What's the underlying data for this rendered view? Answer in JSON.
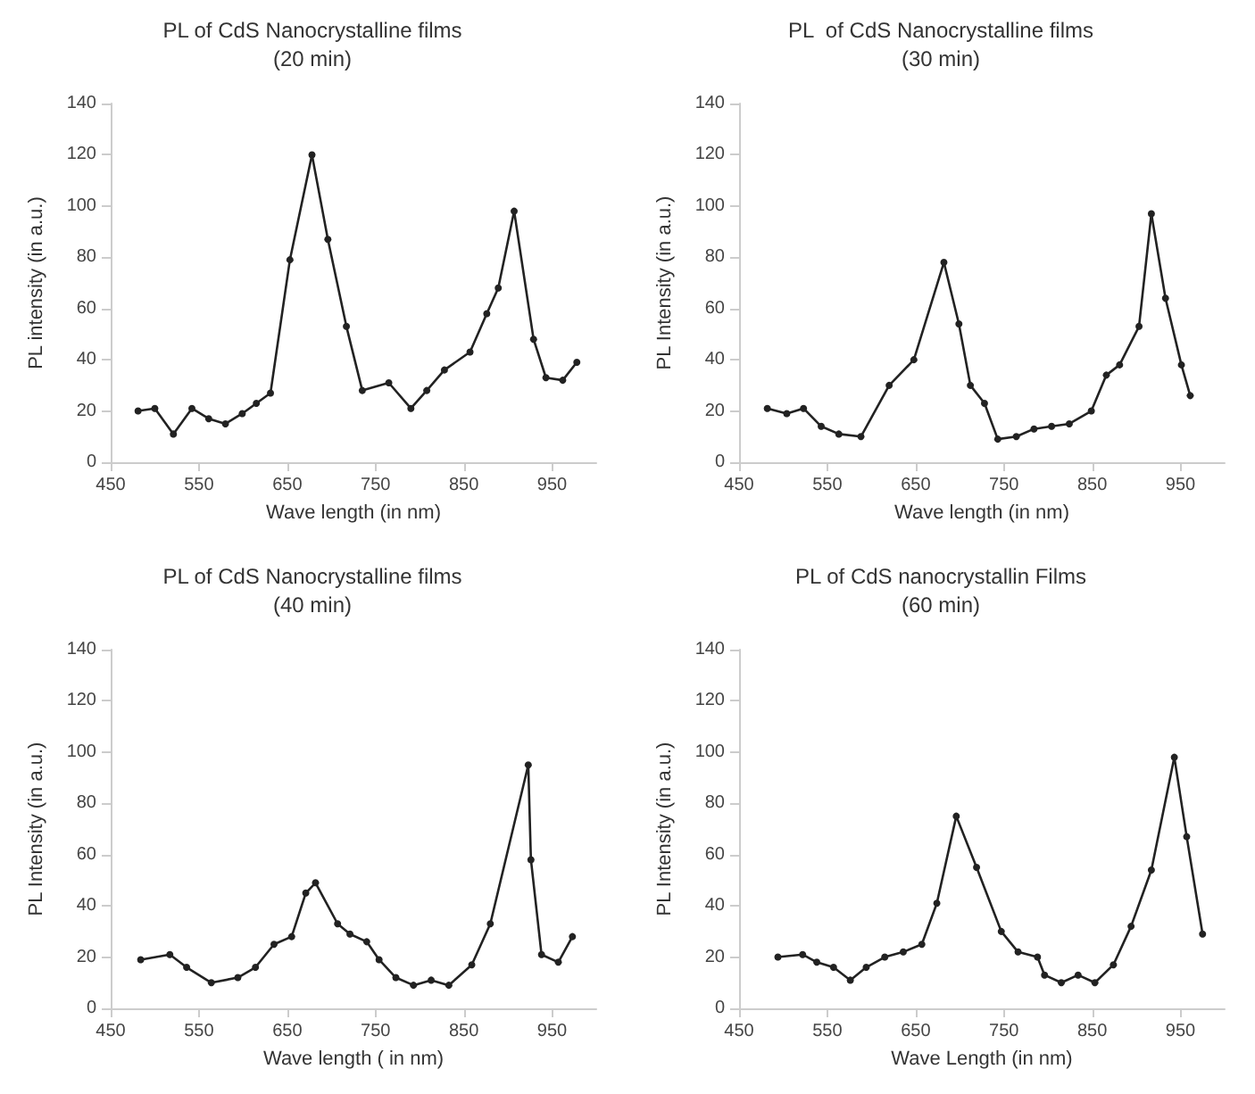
{
  "chart_data": [
    {
      "type": "line",
      "title": "PL of CdS Nanocrystalline films",
      "subtitle": "(20 min)",
      "xlabel": "Wave length (in nm)",
      "ylabel": "PL intensity (in a.u.)",
      "xlim": [
        450,
        1000
      ],
      "xticks": [
        450,
        550,
        650,
        750,
        850,
        950
      ],
      "ylim": [
        0,
        140
      ],
      "yticks": [
        0,
        20,
        40,
        60,
        80,
        100,
        120,
        140
      ],
      "grid": false,
      "marker": "circle",
      "line_style": "solid",
      "series": [
        {
          "color": "#222222",
          "x": [
            481,
            500,
            521,
            542,
            561,
            580,
            599,
            615,
            631,
            653,
            678,
            696,
            717,
            735,
            765,
            790,
            808,
            828,
            857,
            876,
            889,
            907,
            929,
            943,
            962,
            978
          ],
          "values": [
            20,
            21,
            11,
            21,
            17,
            15,
            19,
            23,
            27,
            79,
            120,
            87,
            53,
            28,
            31,
            21,
            28,
            36,
            43,
            58,
            68,
            98,
            48,
            33,
            32,
            39
          ]
        }
      ]
    },
    {
      "type": "line",
      "title": "PL  of CdS Nanocrystalline films",
      "subtitle": "(30 min)",
      "xlabel": "Wave length (in nm)",
      "ylabel": "PL Intensity (in a.u.)",
      "xlim": [
        450,
        1000
      ],
      "xticks": [
        450,
        550,
        650,
        750,
        850,
        950
      ],
      "ylim": [
        0,
        140
      ],
      "yticks": [
        0,
        20,
        40,
        60,
        80,
        100,
        120,
        140
      ],
      "grid": false,
      "marker": "circle",
      "line_style": "solid",
      "series": [
        {
          "color": "#222222",
          "x": [
            482,
            504,
            523,
            543,
            563,
            588,
            620,
            648,
            682,
            699,
            712,
            728,
            743,
            764,
            784,
            804,
            824,
            849,
            866,
            881,
            903,
            917,
            933,
            951,
            961
          ],
          "values": [
            21,
            19,
            21,
            14,
            11,
            10,
            30,
            40,
            78,
            54,
            30,
            23,
            9,
            10,
            13,
            14,
            15,
            20,
            34,
            38,
            53,
            97,
            64,
            38,
            26
          ]
        }
      ]
    },
    {
      "type": "line",
      "title": "PL of CdS Nanocrystalline films",
      "subtitle": "(40 min)",
      "xlabel": "Wave length ( in nm)",
      "ylabel": "PL Intensity (in a.u.)",
      "xlim": [
        450,
        1000
      ],
      "xticks": [
        450,
        550,
        650,
        750,
        850,
        950
      ],
      "ylim": [
        0,
        140
      ],
      "yticks": [
        0,
        20,
        40,
        60,
        80,
        100,
        120,
        140
      ],
      "grid": false,
      "marker": "circle",
      "line_style": "solid",
      "series": [
        {
          "color": "#222222",
          "x": [
            484,
            517,
            536,
            564,
            594,
            614,
            635,
            655,
            671,
            682,
            707,
            721,
            740,
            754,
            773,
            793,
            813,
            833,
            859,
            880,
            923,
            926,
            938,
            957,
            973
          ],
          "values": [
            19,
            21,
            16,
            10,
            12,
            16,
            25,
            28,
            45,
            49,
            33,
            29,
            26,
            19,
            12,
            9,
            11,
            9,
            17,
            33,
            95,
            58,
            21,
            18,
            28
          ]
        }
      ]
    },
    {
      "type": "line",
      "title": "PL of CdS nanocrystallin Films",
      "subtitle": "(60 min)",
      "xlabel": "Wave Length (in nm)",
      "ylabel": "PL Intensity (in a.u.)",
      "xlim": [
        450,
        1000
      ],
      "xticks": [
        450,
        550,
        650,
        750,
        850,
        950
      ],
      "ylim": [
        0,
        140
      ],
      "yticks": [
        0,
        20,
        40,
        60,
        80,
        100,
        120,
        140
      ],
      "grid": false,
      "marker": "circle",
      "line_style": "solid",
      "series": [
        {
          "color": "#222222",
          "x": [
            494,
            522,
            538,
            557,
            576,
            594,
            615,
            636,
            657,
            674,
            696,
            719,
            747,
            766,
            788,
            796,
            815,
            834,
            853,
            874,
            894,
            917,
            943,
            957,
            975
          ],
          "values": [
            20,
            21,
            18,
            16,
            11,
            16,
            20,
            22,
            25,
            41,
            75,
            55,
            30,
            22,
            20,
            13,
            10,
            13,
            10,
            17,
            32,
            54,
            98,
            67,
            29
          ]
        }
      ]
    }
  ]
}
